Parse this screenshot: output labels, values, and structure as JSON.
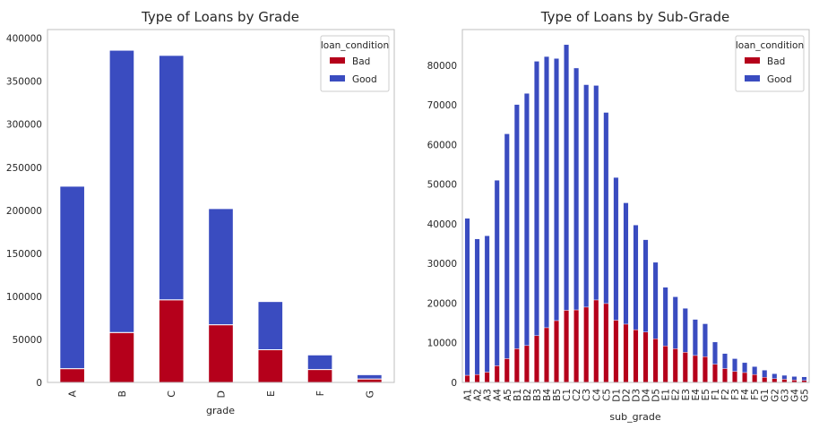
{
  "colors": {
    "bad": "#b5001b",
    "good": "#3a4cc0",
    "axis": "#bfbfbf"
  },
  "chart_data": [
    {
      "type": "bar",
      "stacked": true,
      "title": "Type of Loans by Grade",
      "xlabel": "grade",
      "ylabel": "",
      "ylim": [
        0,
        410000
      ],
      "yticks": [
        0,
        50000,
        100000,
        150000,
        200000,
        250000,
        300000,
        350000,
        400000
      ],
      "grid": false,
      "legend": {
        "title": "loan_condition",
        "placement": "top-right"
      },
      "categories": [
        "A",
        "B",
        "C",
        "D",
        "E",
        "F",
        "G"
      ],
      "series": [
        {
          "name": "Bad",
          "values": [
            16000,
            58000,
            96000,
            67000,
            38000,
            15000,
            4000
          ]
        },
        {
          "name": "Good",
          "values": [
            212000,
            328000,
            284000,
            135000,
            56000,
            17000,
            5000
          ]
        }
      ]
    },
    {
      "type": "bar",
      "stacked": true,
      "title": "Type of Loans by Sub-Grade",
      "xlabel": "sub_grade",
      "ylabel": "",
      "ylim": [
        0,
        89000
      ],
      "yticks": [
        0,
        10000,
        20000,
        30000,
        40000,
        50000,
        60000,
        70000,
        80000
      ],
      "grid": false,
      "legend": {
        "title": "loan_condition",
        "placement": "top-right"
      },
      "categories": [
        "A1",
        "A2",
        "A3",
        "A4",
        "A5",
        "B1",
        "B2",
        "B3",
        "B4",
        "B5",
        "C1",
        "C2",
        "C3",
        "C4",
        "C5",
        "D1",
        "D2",
        "D3",
        "D4",
        "D5",
        "E1",
        "E2",
        "E3",
        "E4",
        "E5",
        "F1",
        "F2",
        "F3",
        "F4",
        "F5",
        "G1",
        "G2",
        "G3",
        "G4",
        "G5"
      ],
      "series": [
        {
          "name": "Bad",
          "values": [
            1800,
            2000,
            2600,
            4200,
            6000,
            8500,
            9300,
            11800,
            13800,
            15600,
            18200,
            18300,
            19000,
            20800,
            19900,
            15700,
            14700,
            13300,
            12700,
            11000,
            9200,
            8500,
            7600,
            6800,
            6500,
            4600,
            3500,
            2800,
            2500,
            2000,
            1300,
            950,
            800,
            600,
            500
          ]
        },
        {
          "name": "Good",
          "values": [
            39600,
            34200,
            34400,
            46800,
            56700,
            61600,
            63600,
            69200,
            68400,
            66100,
            67000,
            61000,
            56100,
            54100,
            48200,
            36000,
            30600,
            26400,
            23300,
            19300,
            14800,
            13100,
            11100,
            9100,
            8300,
            5600,
            3800,
            3200,
            2500,
            2000,
            1800,
            1250,
            1000,
            900,
            900
          ]
        }
      ]
    }
  ]
}
